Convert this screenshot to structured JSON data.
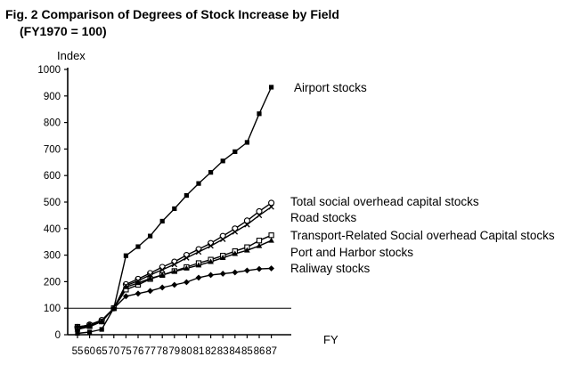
{
  "chart_data": {
    "type": "line",
    "title": "Fig. 2 Comparison of Degrees of Stock Increase by Field",
    "subtitle": "(FY1970 = 100)",
    "ylabel": "Index",
    "xlabel": "FY",
    "ylim": [
      0,
      1000
    ],
    "yticks": [
      0,
      100,
      200,
      300,
      400,
      500,
      600,
      700,
      800,
      900,
      1000
    ],
    "reference_line": 100,
    "x": [
      55,
      60,
      65,
      70,
      75,
      76,
      77,
      78,
      79,
      80,
      81,
      82,
      83,
      84,
      85,
      86,
      87
    ],
    "xtick_labels": [
      "55",
      "60",
      "65",
      "70",
      "75",
      "76",
      "77",
      "78",
      "79",
      "80",
      "81",
      "82",
      "83",
      "84",
      "85",
      "86",
      "87"
    ],
    "grid": false,
    "series": [
      {
        "name": "Airport stocks",
        "marker": "square-filled",
        "values": [
          5,
          10,
          20,
          100,
          298,
          332,
          372,
          428,
          475,
          525,
          570,
          612,
          655,
          690,
          725,
          833,
          933
        ]
      },
      {
        "name": "Total social overhead capital stocks",
        "marker": "circle-open",
        "values": [
          28,
          38,
          55,
          100,
          190,
          210,
          232,
          255,
          275,
          300,
          322,
          345,
          372,
          400,
          430,
          465,
          497
        ]
      },
      {
        "name": "Road stocks",
        "marker": "x",
        "values": [
          25,
          33,
          52,
          100,
          185,
          203,
          225,
          245,
          265,
          290,
          312,
          335,
          360,
          388,
          415,
          450,
          482
        ]
      },
      {
        "name": "Transport-Related Social overhead Capital stocks",
        "marker": "square-open",
        "values": [
          30,
          35,
          50,
          100,
          170,
          188,
          210,
          225,
          240,
          255,
          270,
          283,
          298,
          315,
          330,
          355,
          375
        ]
      },
      {
        "name": "Port and Harbor stocks",
        "marker": "triangle-filled",
        "values": [
          20,
          30,
          50,
          100,
          180,
          195,
          212,
          225,
          238,
          250,
          262,
          275,
          290,
          305,
          318,
          335,
          355
        ]
      },
      {
        "name": "Raliway stocks",
        "marker": "diamond-filled",
        "values": [
          30,
          35,
          50,
          100,
          145,
          155,
          165,
          178,
          188,
          198,
          215,
          225,
          230,
          235,
          242,
          248,
          250
        ]
      }
    ]
  }
}
